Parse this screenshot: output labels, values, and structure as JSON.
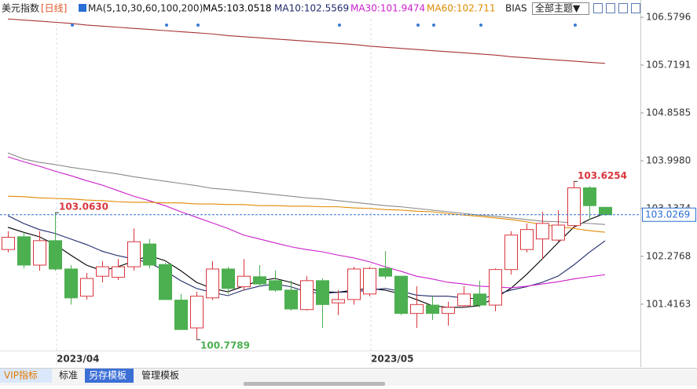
{
  "chart_data": {
    "type": "candlestick",
    "title": "美元指数",
    "period": "[日线]",
    "indicator": "MA(5,10,30,60,100,200)",
    "extra_indicator": "BIAS",
    "theme_button": "全部主题▼",
    "tabs": [
      "VIP指标",
      "标准",
      "另存模板",
      "管理模板"
    ],
    "categories": [
      null,
      null,
      null,
      "2023/04",
      null,
      null,
      null,
      null,
      null,
      null,
      null,
      null,
      null,
      null,
      null,
      null,
      null,
      null,
      null,
      null,
      null,
      null,
      null,
      "2023/05",
      null,
      null,
      null,
      null,
      null,
      null,
      null,
      null,
      null,
      null,
      null,
      null,
      null,
      null,
      null
    ],
    "open": [
      102.4,
      102.63,
      102.12,
      102.56,
      102.05,
      101.56,
      101.92,
      101.9,
      102.09,
      102.5,
      102.13,
      101.49,
      100.99,
      101.53,
      102.05,
      101.73,
      101.91,
      101.84,
      101.67,
      101.32,
      101.84,
      101.44,
      101.5,
      101.6,
      102.06,
      101.92,
      101.25,
      101.4,
      101.25,
      101.39,
      101.6,
      101.4,
      102.04,
      102.4,
      102.59,
      102.57,
      102.83,
      103.51,
      103.16
    ],
    "high": [
      102.73,
      102.71,
      102.73,
      103.063,
      102.12,
      101.98,
      102.19,
      102.23,
      102.78,
      102.59,
      102.16,
      101.6,
      101.64,
      102.19,
      102.09,
      102.23,
      102.12,
      102.02,
      101.84,
      101.92,
      101.88,
      101.67,
      102.09,
      102.09,
      102.37,
      101.92,
      101.74,
      101.56,
      101.46,
      101.74,
      101.84,
      102.06,
      102.73,
      102.87,
      103.08,
      103.11,
      103.6254,
      103.54,
      103.16
    ],
    "low": [
      102.35,
      102.06,
      102.02,
      102.02,
      101.41,
      101.5,
      101.81,
      101.85,
      102.02,
      102.06,
      101.49,
      100.96,
      100.7789,
      101.49,
      101.6,
      101.67,
      101.73,
      101.64,
      101.3,
      101.3,
      100.99,
      101.22,
      101.41,
      101.56,
      101.87,
      101.22,
      100.99,
      101.13,
      101.03,
      101.36,
      101.36,
      101.29,
      101.95,
      102.35,
      102.23,
      102.54,
      102.8,
      102.94,
      103.01
    ],
    "close": [
      102.62,
      102.12,
      102.56,
      102.05,
      101.53,
      101.88,
      102.09,
      102.09,
      102.54,
      102.12,
      101.5,
      100.96,
      101.56,
      102.05,
      101.7,
      101.92,
      101.78,
      101.67,
      101.33,
      101.84,
      101.41,
      101.5,
      102.05,
      102.06,
      101.92,
      101.25,
      101.41,
      101.25,
      101.36,
      101.6,
      101.4,
      102.04,
      102.66,
      102.76,
      102.87,
      102.84,
      103.51,
      103.19,
      103.0269
    ],
    "high_value_labels": [
      null,
      null,
      null,
      "103.0630",
      null,
      null,
      null,
      null,
      null,
      null,
      null,
      null,
      null,
      null,
      null,
      null,
      null,
      null,
      null,
      null,
      null,
      null,
      null,
      null,
      null,
      null,
      null,
      null,
      null,
      null,
      null,
      null,
      null,
      null,
      null,
      null,
      "103.6254",
      null,
      null
    ],
    "low_value_labels": [
      null,
      null,
      null,
      null,
      null,
      null,
      null,
      null,
      null,
      null,
      null,
      null,
      "100.7789",
      null,
      null,
      null,
      null,
      null,
      null,
      null,
      null,
      null,
      null,
      null,
      null,
      null,
      null,
      null,
      null,
      null,
      null,
      null,
      null,
      null,
      null,
      null,
      null,
      null,
      null
    ],
    "close_value_labels": [
      null,
      null,
      null,
      null,
      null,
      null,
      null,
      null,
      null,
      null,
      null,
      null,
      null,
      null,
      null,
      null,
      null,
      null,
      null,
      null,
      null,
      null,
      null,
      null,
      null,
      null,
      null,
      null,
      null,
      null,
      null,
      null,
      null,
      null,
      null,
      null,
      null,
      null,
      "103.0269"
    ],
    "up_color": "#d9363e",
    "down_color": "#4caf50",
    "last_price_color": "#2a6fd6",
    "series": [
      {
        "name": "MA5:103.0518",
        "color": "#000000",
        "values": [
          102.8,
          102.71,
          102.63,
          102.49,
          102.3,
          102.12,
          102.02,
          102.09,
          102.19,
          102.29,
          102.2,
          102.02,
          101.81,
          101.7,
          101.64,
          101.74,
          101.84,
          101.88,
          101.81,
          101.71,
          101.64,
          101.63,
          101.67,
          101.7,
          101.67,
          101.6,
          101.5,
          101.39,
          101.36,
          101.36,
          101.39,
          101.53,
          101.7,
          101.95,
          102.23,
          102.52,
          102.8,
          102.94,
          103.0518
        ]
      },
      {
        "name": "MA10:102.5569",
        "color": "#1f2a6b",
        "values": [
          103.01,
          102.87,
          102.76,
          102.69,
          102.59,
          102.49,
          102.37,
          102.29,
          102.23,
          102.16,
          102.02,
          101.84,
          101.7,
          101.63,
          101.57,
          101.67,
          101.74,
          101.78,
          101.73,
          101.64,
          101.61,
          101.63,
          101.64,
          101.67,
          101.7,
          101.65,
          101.58,
          101.56,
          101.56,
          101.53,
          101.51,
          101.58,
          101.67,
          101.73,
          101.81,
          101.92,
          102.12,
          102.35,
          102.5569
        ]
      },
      {
        "name": "MA30:101.9474",
        "color": "#cc1fcc",
        "values": [
          104.07,
          103.98,
          103.9,
          103.81,
          103.73,
          103.64,
          103.56,
          103.46,
          103.36,
          103.28,
          103.19,
          103.08,
          102.98,
          102.88,
          102.78,
          102.66,
          102.59,
          102.52,
          102.45,
          102.4,
          102.36,
          102.3,
          102.25,
          102.18,
          102.09,
          102.01,
          101.92,
          101.87,
          101.81,
          101.78,
          101.74,
          101.73,
          101.71,
          101.74,
          101.78,
          101.82,
          101.87,
          101.91,
          101.9474
        ]
      },
      {
        "name": "MA60:102.711",
        "color": "#e08a00",
        "values": [
          103.36,
          103.35,
          103.33,
          103.32,
          103.31,
          103.29,
          103.28,
          103.26,
          103.25,
          103.25,
          103.24,
          103.24,
          103.22,
          103.22,
          103.21,
          103.21,
          103.19,
          103.19,
          103.18,
          103.18,
          103.17,
          103.17,
          103.15,
          103.14,
          103.12,
          103.11,
          103.09,
          103.08,
          103.05,
          103.02,
          103.0,
          102.97,
          102.94,
          102.9,
          102.85,
          102.81,
          102.78,
          102.74,
          102.711
        ]
      },
      {
        "color": "#8a8a8a",
        "values": [
          104.14,
          104.03,
          103.97,
          103.93,
          103.88,
          103.84,
          103.8,
          103.76,
          103.71,
          103.67,
          103.63,
          103.59,
          103.55,
          103.5,
          103.48,
          103.45,
          103.42,
          103.39,
          103.36,
          103.33,
          103.31,
          103.28,
          103.25,
          103.22,
          103.19,
          103.17,
          103.14,
          103.11,
          103.08,
          103.05,
          103.02,
          103.0,
          102.97,
          102.94,
          102.91,
          102.9,
          102.88,
          102.87,
          102.85
        ]
      },
      {
        "color": "#a83232",
        "values": [
          106.55,
          106.53,
          106.51,
          106.49,
          106.47,
          106.44,
          106.42,
          106.4,
          106.38,
          106.36,
          106.34,
          106.32,
          106.3,
          106.28,
          106.25,
          106.23,
          106.21,
          106.19,
          106.17,
          106.15,
          106.13,
          106.11,
          106.09,
          106.06,
          106.04,
          106.02,
          106.0,
          105.98,
          105.96,
          105.94,
          105.92,
          105.9,
          105.87,
          105.85,
          105.83,
          105.81,
          105.79,
          105.77,
          105.75
        ]
      }
    ],
    "ylim": [
      100.61,
      106.82
    ],
    "yticks": [
      106.5796,
      105.7191,
      104.8585,
      {
        "value": 103.998,
        "label": "103.9980"
      },
      103.1374,
      102.2768,
      101.4163
    ]
  }
}
